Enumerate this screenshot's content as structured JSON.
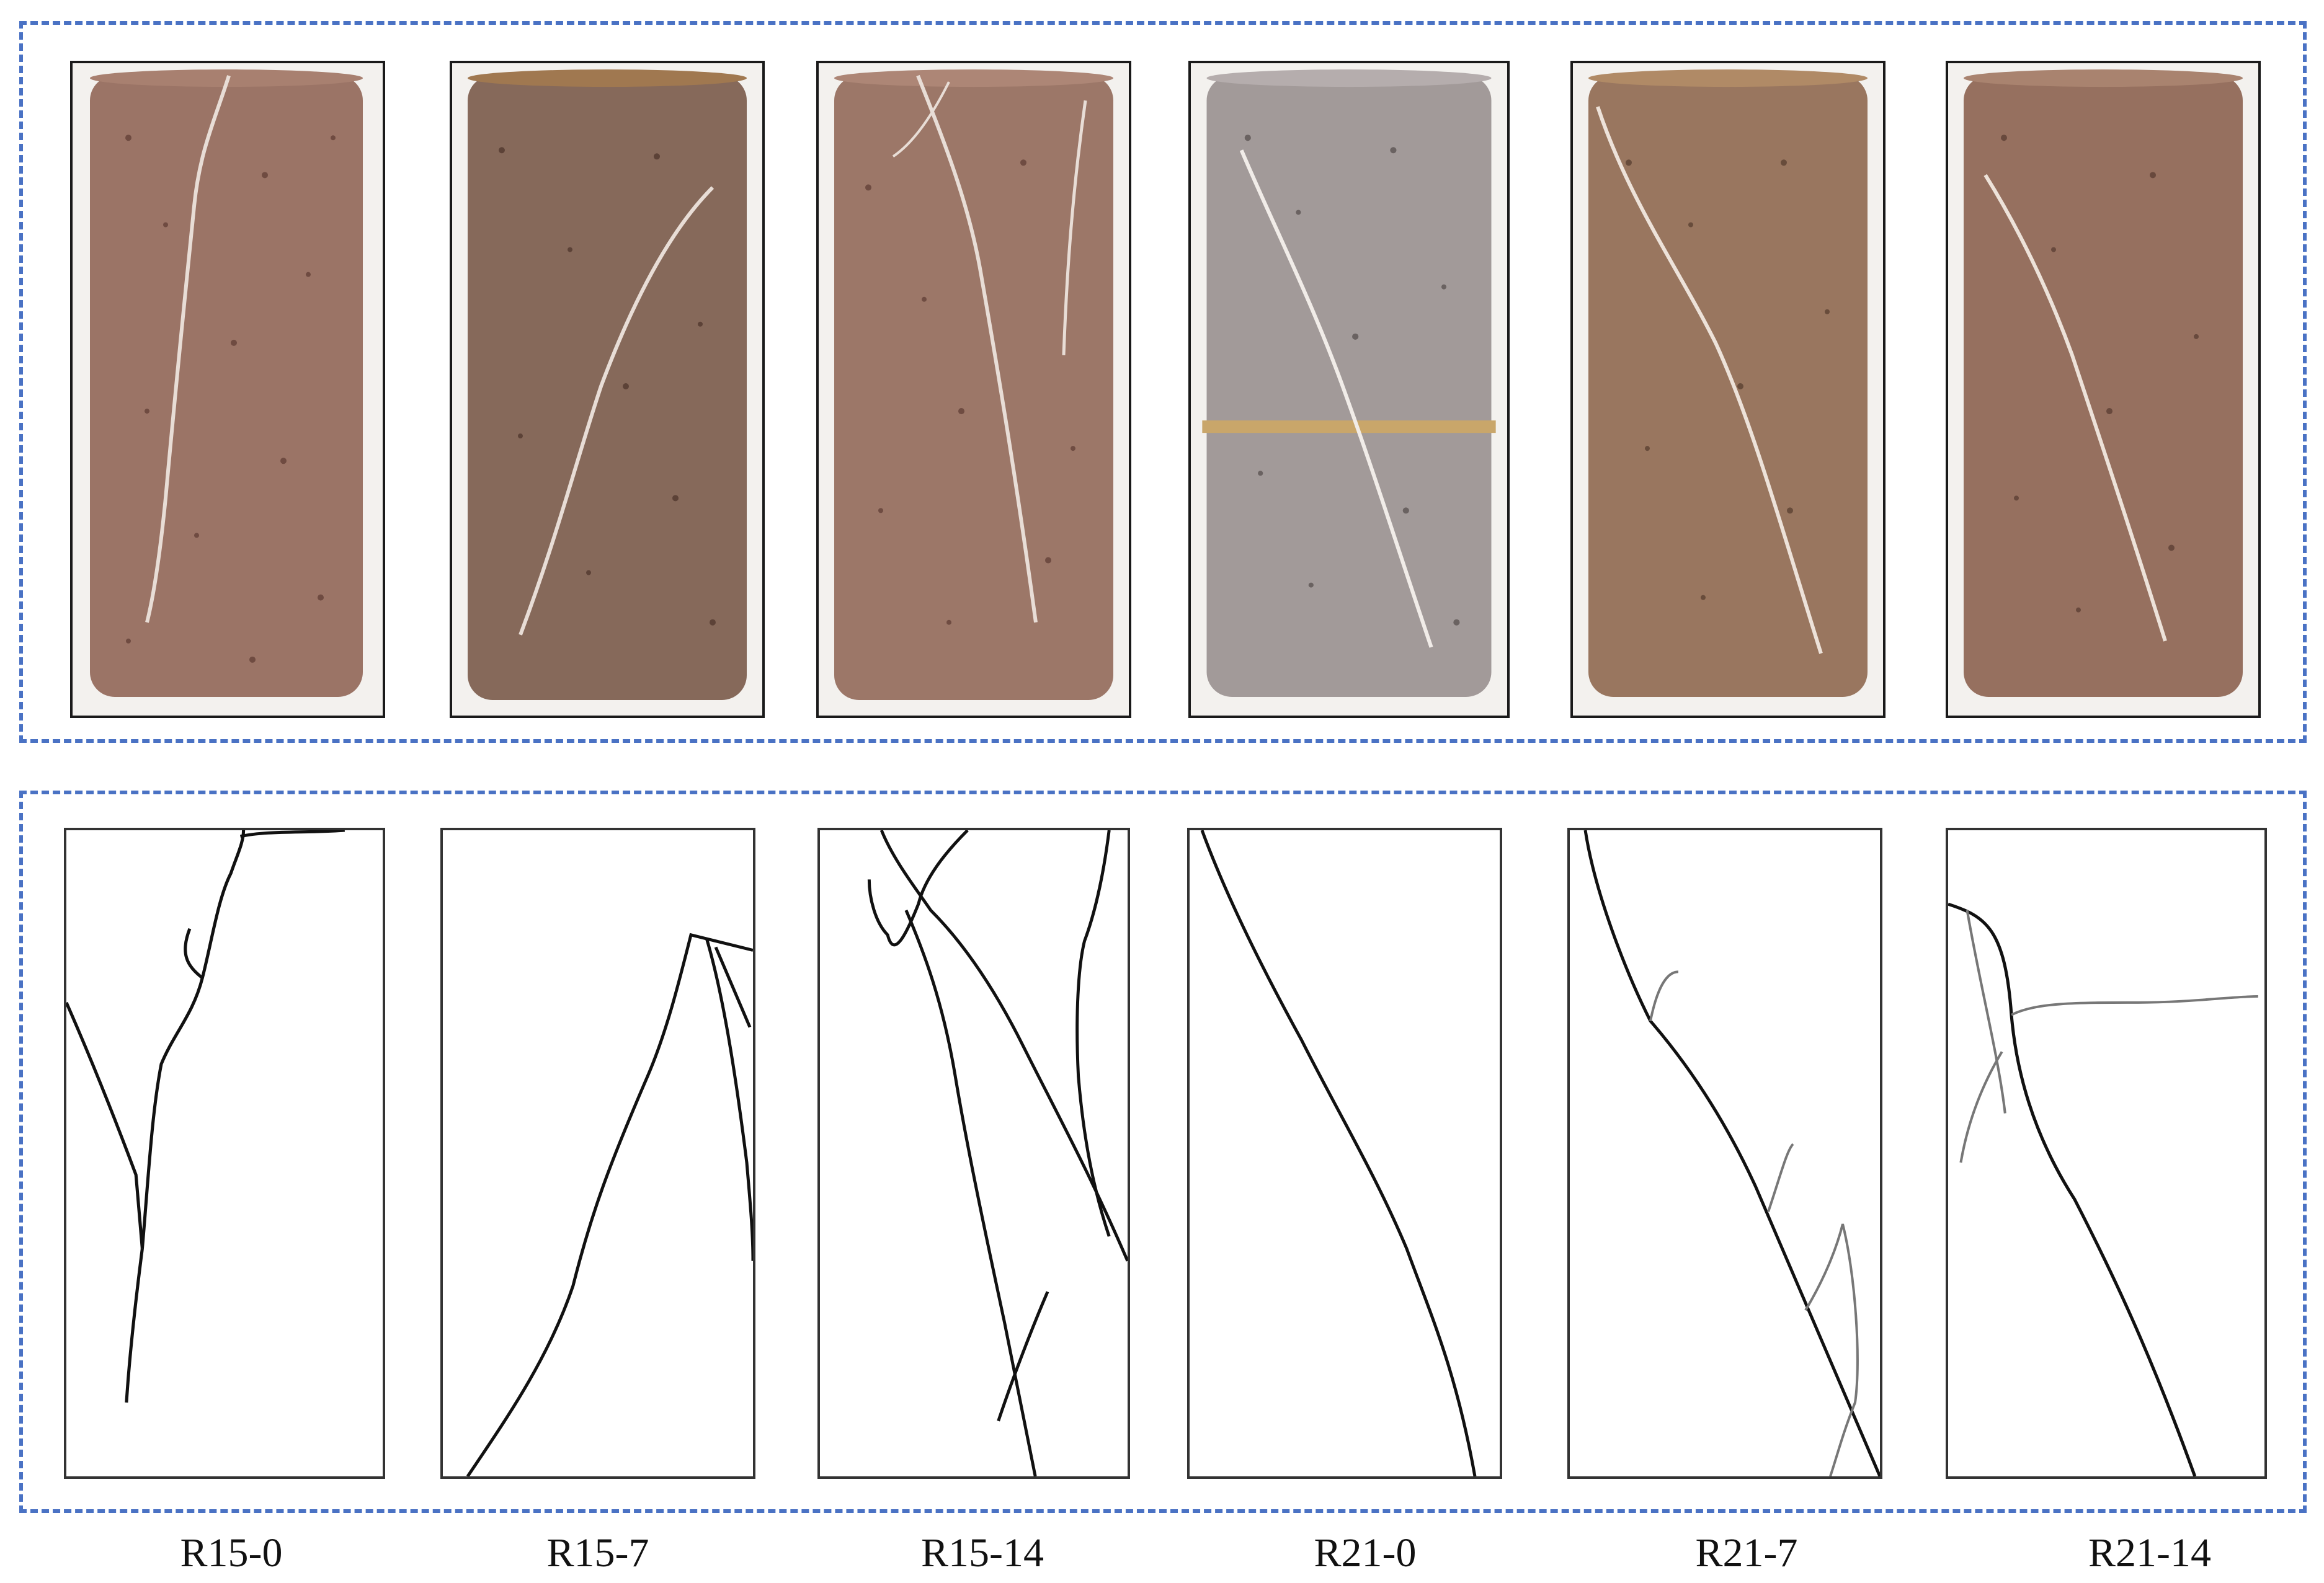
{
  "specimens": [
    {
      "label": "R15-0",
      "surface_color": "#9b7466",
      "photo": "reddish-brown concrete cylinder with crack"
    },
    {
      "label": "R15-7",
      "surface_color": "#86695a",
      "photo": "brown concrete cylinder with crack"
    },
    {
      "label": "R15-14",
      "surface_color": "#9c7768",
      "photo": "reddish-brown concrete cylinder with multiple cracks"
    },
    {
      "label": "R21-0",
      "surface_color": "#a29a99",
      "photo": "grey concrete cylinder with diagonal crack and band"
    },
    {
      "label": "R21-7",
      "surface_color": "#99765f",
      "photo": "brown concrete cylinder with diagonal crack"
    },
    {
      "label": "R21-14",
      "surface_color": "#96705f",
      "photo": "reddish-brown concrete cylinder with diagonal crack"
    }
  ],
  "colors": {
    "frame_dash": "#4a72c4",
    "crack_line": "#111111",
    "crack_minor": "#777777"
  }
}
